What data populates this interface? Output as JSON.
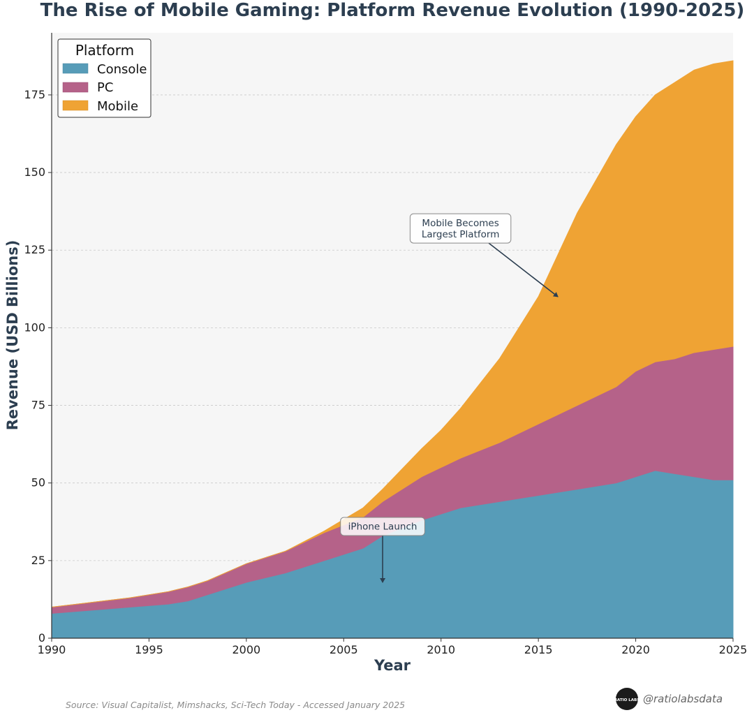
{
  "chart_data": {
    "type": "area",
    "stacked": true,
    "title": "The Rise of Mobile Gaming: Platform Revenue Evolution (1990-2025)",
    "xlabel": "Year",
    "ylabel": "Revenue (USD Billions)",
    "xlim": [
      1990,
      2025
    ],
    "ylim": [
      0,
      195
    ],
    "x_ticks": [
      1990,
      1995,
      2000,
      2005,
      2010,
      2015,
      2020,
      2025
    ],
    "y_ticks": [
      0,
      25,
      50,
      75,
      100,
      125,
      150,
      175
    ],
    "grid": "horizontal dashed",
    "legend": {
      "title": "Platform",
      "placement": "top-left"
    },
    "x": [
      1990,
      1992,
      1994,
      1996,
      1997,
      1998,
      2000,
      2002,
      2004,
      2006,
      2007,
      2009,
      2010,
      2011,
      2013,
      2015,
      2017,
      2019,
      2020,
      2021,
      2022,
      2023,
      2024,
      2025
    ],
    "series": [
      {
        "name": "Console",
        "color": "#579cb8",
        "values": [
          8,
          9,
          10,
          11,
          12,
          14,
          18,
          21,
          25,
          29,
          33,
          38,
          40,
          42,
          44,
          46,
          48,
          50,
          52,
          54,
          53,
          52,
          51,
          51
        ]
      },
      {
        "name": "PC",
        "color": "#b56289",
        "values": [
          2,
          2.5,
          3,
          4,
          4.5,
          4.5,
          6,
          7,
          9,
          10,
          11,
          14,
          15,
          16,
          19,
          23,
          27,
          31,
          34,
          35,
          37,
          40,
          42,
          43
        ]
      },
      {
        "name": "Mobile",
        "color": "#efa334",
        "values": [
          0,
          0,
          0,
          0,
          0,
          0,
          0,
          0,
          0.5,
          3,
          4,
          9,
          12,
          16,
          27,
          41,
          62,
          78,
          82,
          86,
          89,
          91,
          92,
          92
        ]
      }
    ],
    "annotations": [
      {
        "text": "Mobile Becomes\nLargest Platform",
        "x": 2016,
        "y": 110,
        "text_x": 2011,
        "text_y": 132
      },
      {
        "text": "iPhone Launch",
        "x": 2007,
        "y": 18,
        "text_x": 2007,
        "text_y": 36
      }
    ]
  },
  "source_note": "Source: Visual Capitalist, Mimshacks, Sci-Tech Today - Accessed January 2025",
  "watermark": {
    "handle": "@ratiolabsdata",
    "logo_text": "RATIO LABS"
  }
}
